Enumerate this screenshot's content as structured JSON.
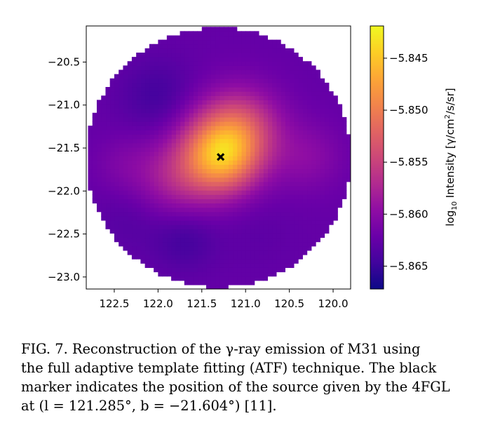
{
  "chart_data": {
    "type": "heatmap",
    "x_ticks": [
      "122.5",
      "122.0",
      "121.5",
      "121.0",
      "120.5",
      "120.0"
    ],
    "x_tick_values": [
      122.5,
      122.0,
      121.5,
      121.0,
      120.5,
      120.0
    ],
    "y_ticks": [
      "−20.5",
      "−21.0",
      "−21.5",
      "−22.0",
      "−22.5",
      "−23.0"
    ],
    "y_tick_values": [
      -20.5,
      -21.0,
      -21.5,
      -22.0,
      -22.5,
      -23.0
    ],
    "xlim": [
      122.82,
      119.8
    ],
    "ylim": [
      -23.14,
      -20.08
    ],
    "region": {
      "center_l": 121.31,
      "center_b": -21.61,
      "radius_deg": 1.51,
      "pixel_deg": 0.05
    },
    "colormap": "plasma",
    "colorbar": {
      "label": "log10 Intensity [γ/cm²/s/sr]",
      "label_base": "log",
      "label_sub": "10",
      "label_mid": " Intensity [γ/cm",
      "label_sup": "2",
      "label_end": "/s/sr]",
      "ticks": [
        "−5.845",
        "−5.850",
        "−5.855",
        "−5.860",
        "−5.865"
      ],
      "tick_values": [
        -5.845,
        -5.85,
        -5.855,
        -5.86,
        -5.865
      ],
      "range": [
        -5.8672,
        -5.8419
      ]
    },
    "intensity_model": {
      "baseline": -5.8625,
      "components": [
        {
          "l": 121.285,
          "b": -21.604,
          "amplitude": 0.0125,
          "sigma": 0.3
        },
        {
          "l": 121.2,
          "b": -21.35,
          "amplitude": 0.006,
          "sigma": 0.35
        },
        {
          "l": 121.8,
          "b": -21.85,
          "amplitude": 0.0045,
          "sigma": 0.32
        },
        {
          "l": 121.0,
          "b": -21.2,
          "amplitude": 0.0035,
          "sigma": 0.3
        },
        {
          "l": 120.3,
          "b": -21.6,
          "amplitude": 0.0025,
          "sigma": 0.28
        },
        {
          "l": 122.4,
          "b": -21.7,
          "amplitude": 0.0015,
          "sigma": 0.25
        },
        {
          "l": 122.0,
          "b": -20.9,
          "amplitude": -0.002,
          "sigma": 0.3
        },
        {
          "l": 121.7,
          "b": -22.55,
          "amplitude": -0.002,
          "sigma": 0.25
        },
        {
          "l": 122.3,
          "b": -22.3,
          "amplitude": -0.001,
          "sigma": 0.3
        },
        {
          "l": 120.9,
          "b": -22.45,
          "amplitude": -0.0005,
          "sigma": 0.3
        }
      ]
    },
    "source_marker": {
      "l": 121.285,
      "b": -21.604,
      "symbol": "x",
      "color": "#000000"
    }
  },
  "caption": {
    "line1": "FIG. 7. Reconstruction of the γ-ray emission of M31 using",
    "line2": "the full adaptive template fitting (ATF) technique. The black",
    "line3": "marker indicates the position of the source given by the 4FGL",
    "line4": "at (l = 121.285°, b = −21.604°) [11]."
  }
}
